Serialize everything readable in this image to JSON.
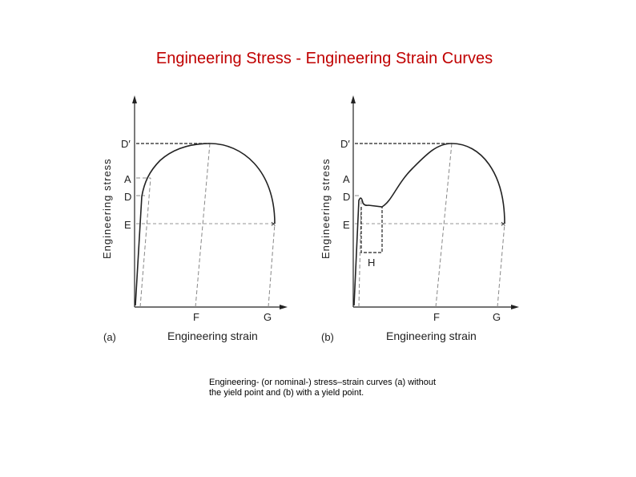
{
  "title": "Engineering Stress - Engineering Strain Curves",
  "caption": {
    "line1": "Engineering- (or nominal-) stress–strain curves (a) without",
    "line2": "the yield point and (b) with a yield point."
  },
  "panels": [
    {
      "tag": "(a)",
      "ylabel": "Engineering stress",
      "xlabel": "Engineering strain",
      "y_markers": [
        "D′",
        "A",
        "D",
        "E"
      ],
      "x_markers": [
        "F",
        "G"
      ]
    },
    {
      "tag": "(b)",
      "ylabel": "Engineering stress",
      "xlabel": "Engineering strain",
      "y_markers": [
        "D′",
        "A",
        "D",
        "E"
      ],
      "x_markers": [
        "F",
        "G"
      ],
      "extra_marker": "H"
    }
  ],
  "colors": {
    "title": "#c00000",
    "ink": "#222222"
  }
}
